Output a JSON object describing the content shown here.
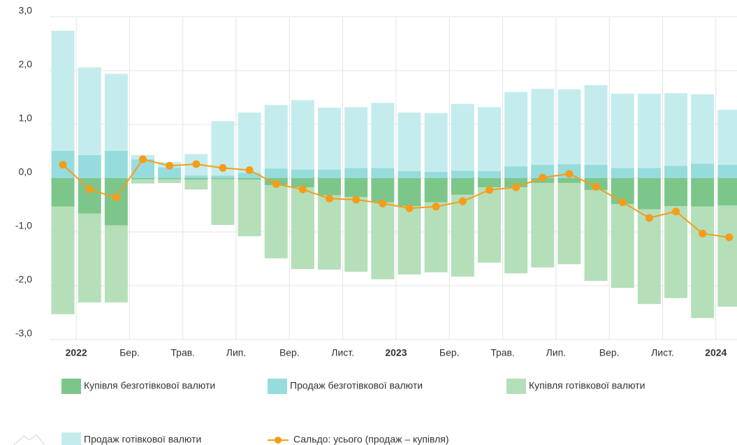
{
  "chart_data": {
    "type": "bar",
    "stacked": true,
    "categories": [
      null,
      "2022",
      null,
      "Бер.",
      null,
      "Трав.",
      null,
      "Лип.",
      null,
      "Вер.",
      null,
      "Лист.",
      null,
      "2023",
      null,
      "Бер.",
      null,
      "Трав.",
      null,
      "Лип.",
      null,
      "Вер.",
      null,
      "Лист.",
      null,
      "2024"
    ],
    "ylim": [
      -3,
      3
    ],
    "yticks": [
      {
        "value": -3,
        "label": "-3,0"
      },
      {
        "value": -2,
        "label": "-2,0"
      },
      {
        "value": -1,
        "label": "-1,0"
      },
      {
        "value": 0,
        "label": "0,0"
      },
      {
        "value": 1,
        "label": "1,0"
      },
      {
        "value": 2,
        "label": "2,0"
      },
      {
        "value": 3,
        "label": "3,0"
      }
    ],
    "grid": true,
    "series": [
      {
        "name": "Купівля безготівкової валюти",
        "color": "#7dc68a",
        "type": "bar",
        "values": [
          -0.53,
          -0.66,
          -0.88,
          -0.02,
          -0.02,
          -0.03,
          -0.02,
          -0.03,
          -0.13,
          -0.17,
          -0.32,
          -0.35,
          -0.45,
          -0.52,
          -0.45,
          -0.31,
          -0.17,
          -0.17,
          -0.09,
          -0.09,
          -0.22,
          -0.48,
          -0.58,
          -0.52,
          -0.53,
          -0.51
        ]
      },
      {
        "name": "Продаж безготівкової валюти",
        "color": "#96dcdc",
        "type": "bar",
        "values": [
          0.51,
          0.43,
          0.51,
          0.35,
          0.2,
          0.05,
          0.05,
          0.1,
          0.18,
          0.16,
          0.16,
          0.19,
          0.19,
          0.13,
          0.12,
          0.14,
          0.13,
          0.22,
          0.25,
          0.26,
          0.25,
          0.19,
          0.19,
          0.23,
          0.27,
          0.25
        ]
      },
      {
        "name": "Купівля готівкової валюти",
        "color": "#b5dfb9",
        "type": "bar",
        "values": [
          -2.0,
          -1.65,
          -1.43,
          -0.08,
          -0.07,
          -0.18,
          -0.85,
          -1.05,
          -1.36,
          -1.52,
          -1.38,
          -1.39,
          -1.43,
          -1.27,
          -1.3,
          -1.52,
          -1.4,
          -1.6,
          -1.57,
          -1.51,
          -1.69,
          -1.56,
          -1.76,
          -1.71,
          -2.07,
          -1.88
        ]
      },
      {
        "name": "Продаж готівкової валюти",
        "color": "#c5eced",
        "type": "bar",
        "values": [
          2.23,
          1.63,
          1.43,
          0.08,
          0.1,
          0.4,
          1.01,
          1.12,
          1.18,
          1.29,
          1.15,
          1.13,
          1.21,
          1.09,
          1.09,
          1.24,
          1.19,
          1.38,
          1.41,
          1.39,
          1.48,
          1.38,
          1.38,
          1.35,
          1.29,
          1.02
        ]
      },
      {
        "name": "Сальдо: усього (продаж – купівля)",
        "color": "#f59c1a",
        "type": "line",
        "values": [
          0.25,
          -0.21,
          -0.36,
          0.35,
          0.23,
          0.26,
          0.19,
          0.15,
          -0.11,
          -0.21,
          -0.38,
          -0.4,
          -0.47,
          -0.56,
          -0.53,
          -0.43,
          -0.22,
          -0.17,
          0.01,
          0.08,
          -0.16,
          -0.45,
          -0.74,
          -0.62,
          -1.03,
          -1.1
        ]
      }
    ]
  }
}
